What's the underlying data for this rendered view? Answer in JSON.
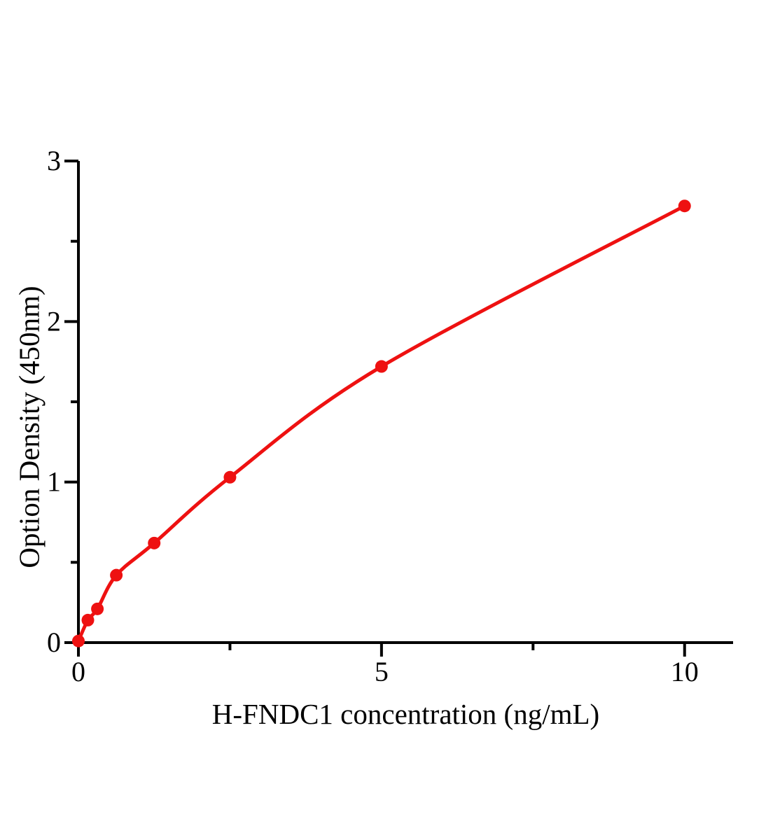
{
  "figure": {
    "background_color": "#ffffff",
    "text_color": "#000000"
  },
  "chart_data": {
    "type": "scatter",
    "title": "",
    "xlabel": "H-FNDC1 concentration (ng/mL)",
    "ylabel": "Option Density (450nm)",
    "series": [
      {
        "x": [
          0,
          0.156,
          0.313,
          0.625,
          1.25,
          2.5,
          5,
          10
        ],
        "y": [
          0.01,
          0.14,
          0.21,
          0.42,
          0.62,
          1.03,
          1.72,
          2.72
        ],
        "marker": "circle",
        "line": "smooth",
        "color": "#ee1111"
      }
    ],
    "xlim": [
      0,
      10.8
    ],
    "ylim": [
      0,
      3
    ],
    "x_major_ticks": [
      0,
      5,
      10
    ],
    "x_minor_ticks": [
      2.5,
      7.5
    ],
    "y_major_ticks": [
      0,
      1,
      2,
      3
    ],
    "y_minor_ticks": [
      0.5,
      1.5,
      2.5
    ],
    "grid": false,
    "legend": "none",
    "axis_color": "#000000"
  }
}
